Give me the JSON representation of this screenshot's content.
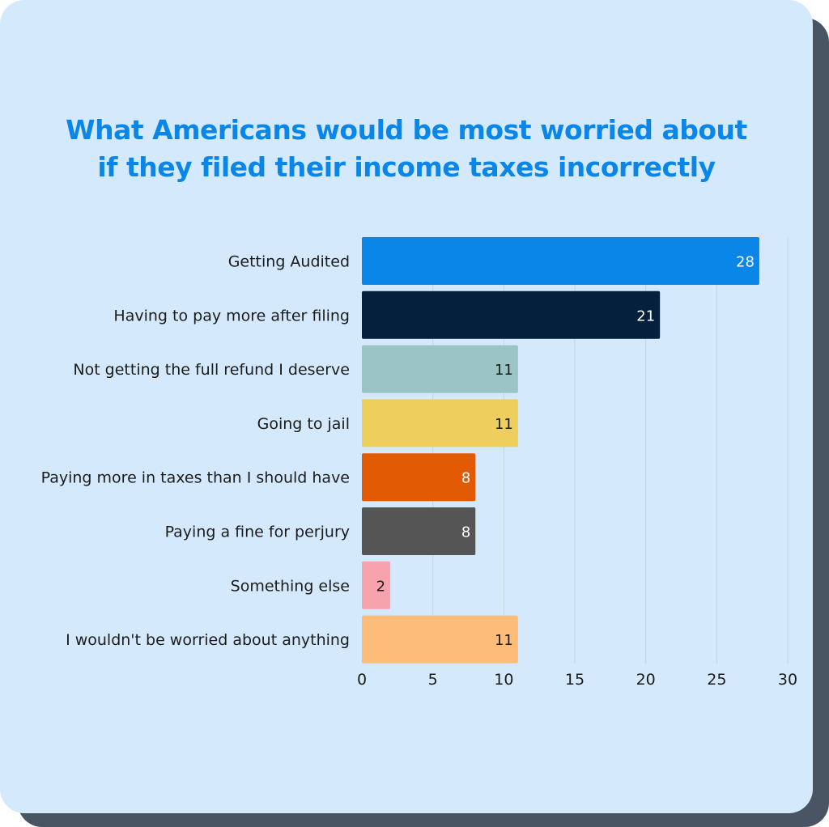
{
  "title_lines": [
    "What Americans would be most worried about",
    "if they filed their income taxes incorrectly"
  ],
  "colors": {
    "title": "#0a86e8",
    "card": "#d4eafc",
    "shadow": "#4a5563",
    "grid": "#c3d4e2"
  },
  "chart_data": {
    "type": "bar",
    "orientation": "horizontal",
    "categories": [
      "Getting Audited",
      "Having to pay more after filing",
      "Not getting the full refund I deserve",
      "Going to jail",
      "Paying more in taxes than I should have",
      "Paying a fine for perjury",
      "Something else",
      "I wouldn't be worried about anything"
    ],
    "values": [
      28,
      21,
      11,
      11,
      8,
      8,
      2,
      11
    ],
    "bar_colors": [
      "#0a86e8",
      "#04203d",
      "#9bc5c5",
      "#eecf5e",
      "#e35a04",
      "#555555",
      "#f7a3ae",
      "#fdbc7a"
    ],
    "value_label_colors": [
      "#ffffff",
      "#ffffff",
      "#1b1b1b",
      "#1b1b1b",
      "#ffffff",
      "#ffffff",
      "#1b1b1b",
      "#1b1b1b"
    ],
    "xlim": [
      0,
      30
    ],
    "xticks": [
      0,
      5,
      10,
      15,
      20,
      25,
      30
    ],
    "grid": "vertical",
    "xlabel": "",
    "ylabel": ""
  }
}
